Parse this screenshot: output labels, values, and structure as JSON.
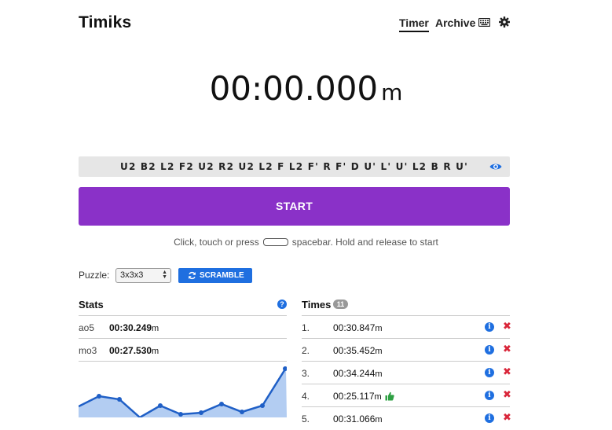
{
  "header": {
    "brand": "Timiks",
    "nav": [
      {
        "label": "Timer",
        "active": true
      },
      {
        "label": "Archive",
        "active": false
      }
    ],
    "icons": [
      "keyboard-icon",
      "gear-icon"
    ]
  },
  "timer": {
    "display": "00:00.000",
    "unit": "m"
  },
  "scramble": {
    "text": "U2 B2 L2 F2 U2 R2 U2 L2 F L2 F' R F' D U' L' U' L2 B R U'",
    "toggle_icon": "eye-icon"
  },
  "start_button": {
    "label": "START",
    "color": "#8a31c8"
  },
  "hint": {
    "before": "Click, touch or press",
    "after": "spacebar. Hold and release to start"
  },
  "puzzle": {
    "label": "Puzzle:",
    "selected": "3x3x3",
    "scramble_button": "SCRAMBLE"
  },
  "stats": {
    "title": "Stats",
    "rows": [
      {
        "label": "ao5",
        "value": "00:30.249",
        "unit": "m"
      },
      {
        "label": "mo3",
        "value": "00:27.530",
        "unit": "m"
      }
    ]
  },
  "times": {
    "title": "Times",
    "count": "11",
    "rows": [
      {
        "index": "1.",
        "value": "00:30.847",
        "unit": "m",
        "best": false
      },
      {
        "index": "2.",
        "value": "00:35.452",
        "unit": "m",
        "best": false
      },
      {
        "index": "3.",
        "value": "00:34.244",
        "unit": "m",
        "best": false
      },
      {
        "index": "4.",
        "value": "00:25.117",
        "unit": "m",
        "best": true
      },
      {
        "index": "5.",
        "value": "00:31.066",
        "unit": "m",
        "best": false
      }
    ]
  },
  "colors": {
    "accent": "#8a31c8",
    "primary_blue": "#1f6fe0",
    "delete_red": "#d9263a",
    "best_green": "#2ea043",
    "chart_line": "#1f5fc6",
    "chart_fill": "#b3cdf2"
  }
}
